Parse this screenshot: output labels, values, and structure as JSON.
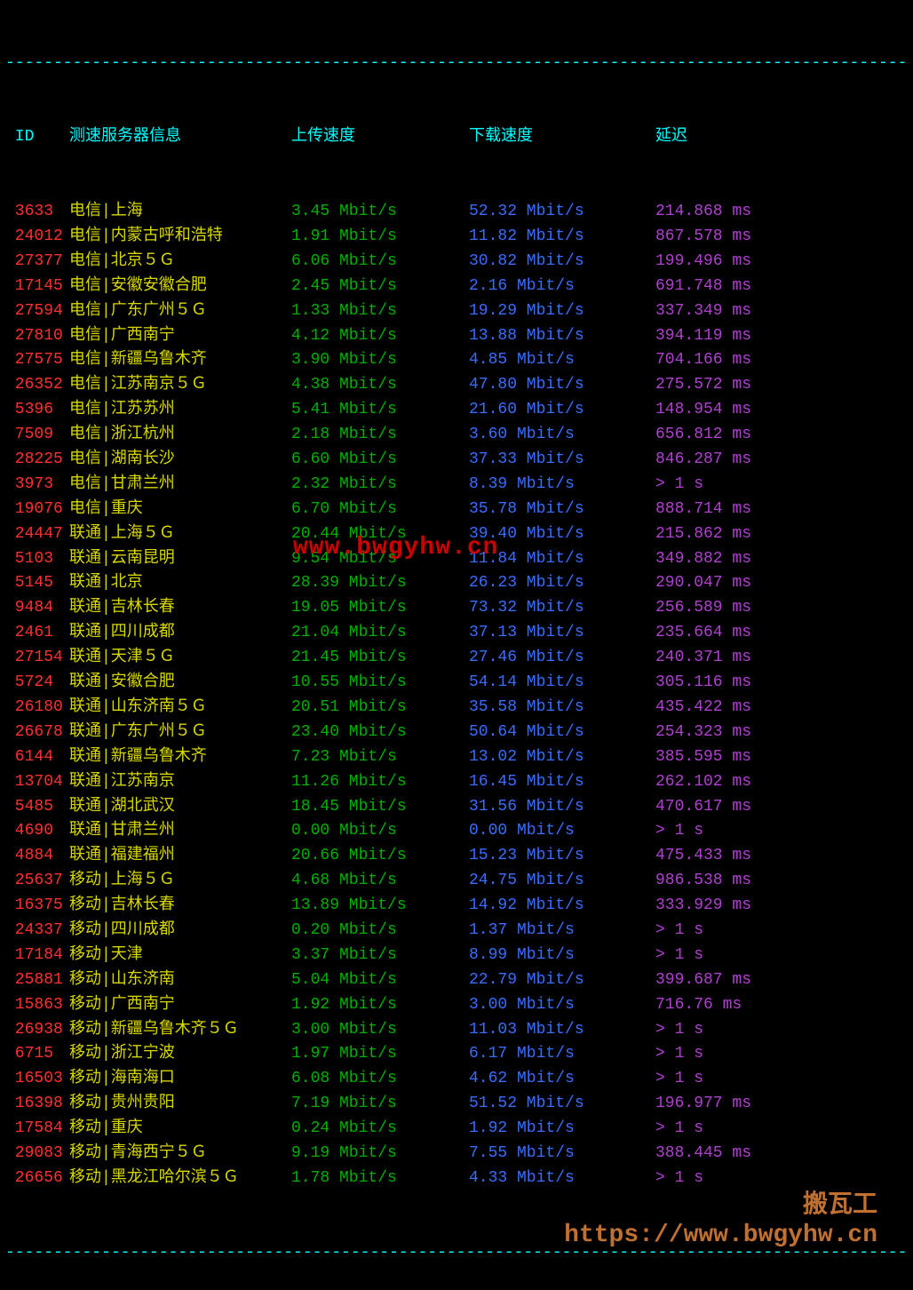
{
  "divider": "----------------------------------------------------------------------------------------------------",
  "headers": {
    "id": " ID",
    "server": "测速服务器信息",
    "upload": "上传速度",
    "download": "下载速度",
    "latency": "延迟"
  },
  "colors": {
    "background": "#000000",
    "divider": "#00ffff",
    "header": "#00ffff",
    "id": "#ff3030",
    "server": "#d8d800",
    "upload": "#00b000",
    "download": "#3a6cff",
    "latency": "#b040d0",
    "watermark1": "#cc0000",
    "watermark2": "#c07030"
  },
  "watermark1": "www.bwgyhw.cn",
  "watermark2_line1": "搬瓦工",
  "watermark2_line2": "https://www.bwgyhw.cn",
  "rows": [
    {
      "id": " 3633",
      "server": "电信|上海",
      "up": "3.45 Mbit/s",
      "down": "52.32 Mbit/s",
      "lat": "214.868 ms"
    },
    {
      "id": " 24012",
      "server": "电信|内蒙古呼和浩特",
      "up": "1.91 Mbit/s",
      "down": "11.82 Mbit/s",
      "lat": "867.578 ms"
    },
    {
      "id": " 27377",
      "server": "电信|北京５Ｇ",
      "up": "6.06 Mbit/s",
      "down": "30.82 Mbit/s",
      "lat": "199.496 ms"
    },
    {
      "id": " 17145",
      "server": "电信|安徽安徽合肥",
      "up": "2.45 Mbit/s",
      "down": "2.16 Mbit/s",
      "lat": "691.748 ms"
    },
    {
      "id": " 27594",
      "server": "电信|广东广州５Ｇ",
      "up": "1.33 Mbit/s",
      "down": "19.29 Mbit/s",
      "lat": "337.349 ms"
    },
    {
      "id": " 27810",
      "server": "电信|广西南宁",
      "up": "4.12 Mbit/s",
      "down": "13.88 Mbit/s",
      "lat": "394.119 ms"
    },
    {
      "id": " 27575",
      "server": "电信|新疆乌鲁木齐",
      "up": "3.90 Mbit/s",
      "down": "4.85 Mbit/s",
      "lat": "704.166 ms"
    },
    {
      "id": " 26352",
      "server": "电信|江苏南京５Ｇ",
      "up": "4.38 Mbit/s",
      "down": "47.80 Mbit/s",
      "lat": "275.572 ms"
    },
    {
      "id": " 5396",
      "server": "电信|江苏苏州",
      "up": "5.41 Mbit/s",
      "down": "21.60 Mbit/s",
      "lat": "148.954 ms"
    },
    {
      "id": " 7509",
      "server": "电信|浙江杭州",
      "up": "2.18 Mbit/s",
      "down": "3.60 Mbit/s",
      "lat": "656.812 ms"
    },
    {
      "id": " 28225",
      "server": "电信|湖南长沙",
      "up": "6.60 Mbit/s",
      "down": "37.33 Mbit/s",
      "lat": "846.287 ms"
    },
    {
      "id": " 3973",
      "server": "电信|甘肃兰州",
      "up": "2.32 Mbit/s",
      "down": "8.39 Mbit/s",
      "lat": "> 1 s"
    },
    {
      "id": " 19076",
      "server": "电信|重庆",
      "up": "6.70 Mbit/s",
      "down": "35.78 Mbit/s",
      "lat": "888.714 ms"
    },
    {
      "id": " 24447",
      "server": "联通|上海５Ｇ",
      "up": "20.44 Mbit/s",
      "down": "39.40 Mbit/s",
      "lat": "215.862 ms"
    },
    {
      "id": " 5103",
      "server": "联通|云南昆明",
      "up": "9.54 Mbit/s",
      "down": "11.84 Mbit/s",
      "lat": "349.882 ms"
    },
    {
      "id": " 5145",
      "server": "联通|北京",
      "up": "28.39 Mbit/s",
      "down": "26.23 Mbit/s",
      "lat": "290.047 ms"
    },
    {
      "id": " 9484",
      "server": "联通|吉林长春",
      "up": "19.05 Mbit/s",
      "down": "73.32 Mbit/s",
      "lat": "256.589 ms"
    },
    {
      "id": " 2461",
      "server": "联通|四川成都",
      "up": "21.04 Mbit/s",
      "down": "37.13 Mbit/s",
      "lat": "235.664 ms"
    },
    {
      "id": " 27154",
      "server": "联通|天津５Ｇ",
      "up": "21.45 Mbit/s",
      "down": "27.46 Mbit/s",
      "lat": "240.371 ms"
    },
    {
      "id": " 5724",
      "server": "联通|安徽合肥",
      "up": "10.55 Mbit/s",
      "down": "54.14 Mbit/s",
      "lat": "305.116 ms"
    },
    {
      "id": " 26180",
      "server": "联通|山东济南５Ｇ",
      "up": "20.51 Mbit/s",
      "down": "35.58 Mbit/s",
      "lat": "435.422 ms"
    },
    {
      "id": " 26678",
      "server": "联通|广东广州５Ｇ",
      "up": "23.40 Mbit/s",
      "down": "50.64 Mbit/s",
      "lat": "254.323 ms"
    },
    {
      "id": " 6144",
      "server": "联通|新疆乌鲁木齐",
      "up": "7.23 Mbit/s",
      "down": "13.02 Mbit/s",
      "lat": "385.595 ms"
    },
    {
      "id": " 13704",
      "server": "联通|江苏南京",
      "up": "11.26 Mbit/s",
      "down": "16.45 Mbit/s",
      "lat": "262.102 ms"
    },
    {
      "id": " 5485",
      "server": "联通|湖北武汉",
      "up": "18.45 Mbit/s",
      "down": "31.56 Mbit/s",
      "lat": "470.617 ms"
    },
    {
      "id": " 4690",
      "server": "联通|甘肃兰州",
      "up": "0.00 Mbit/s",
      "down": "0.00 Mbit/s",
      "lat": "> 1 s"
    },
    {
      "id": " 4884",
      "server": "联通|福建福州",
      "up": "20.66 Mbit/s",
      "down": "15.23 Mbit/s",
      "lat": "475.433 ms"
    },
    {
      "id": " 25637",
      "server": "移动|上海５Ｇ",
      "up": "4.68 Mbit/s",
      "down": "24.75 Mbit/s",
      "lat": "986.538 ms"
    },
    {
      "id": " 16375",
      "server": "移动|吉林长春",
      "up": "13.89 Mbit/s",
      "down": "14.92 Mbit/s",
      "lat": "333.929 ms"
    },
    {
      "id": " 24337",
      "server": "移动|四川成都",
      "up": "0.20 Mbit/s",
      "down": "1.37 Mbit/s",
      "lat": "> 1 s"
    },
    {
      "id": " 17184",
      "server": "移动|天津",
      "up": "3.37 Mbit/s",
      "down": "8.99 Mbit/s",
      "lat": "> 1 s"
    },
    {
      "id": " 25881",
      "server": "移动|山东济南",
      "up": "5.04 Mbit/s",
      "down": "22.79 Mbit/s",
      "lat": "399.687 ms"
    },
    {
      "id": " 15863",
      "server": "移动|广西南宁",
      "up": "1.92 Mbit/s",
      "down": "3.00 Mbit/s",
      "lat": "716.76 ms"
    },
    {
      "id": " 26938",
      "server": "移动|新疆乌鲁木齐５Ｇ",
      "up": "3.00 Mbit/s",
      "down": "11.03 Mbit/s",
      "lat": "> 1 s"
    },
    {
      "id": " 6715",
      "server": "移动|浙江宁波",
      "up": "1.97 Mbit/s",
      "down": "6.17 Mbit/s",
      "lat": "> 1 s"
    },
    {
      "id": " 16503",
      "server": "移动|海南海口",
      "up": "6.08 Mbit/s",
      "down": "4.62 Mbit/s",
      "lat": "> 1 s"
    },
    {
      "id": " 16398",
      "server": "移动|贵州贵阳",
      "up": "7.19 Mbit/s",
      "down": "51.52 Mbit/s",
      "lat": "196.977 ms"
    },
    {
      "id": " 17584",
      "server": "移动|重庆",
      "up": "0.24 Mbit/s",
      "down": "1.92 Mbit/s",
      "lat": "> 1 s"
    },
    {
      "id": " 29083",
      "server": "移动|青海西宁５Ｇ",
      "up": "9.19 Mbit/s",
      "down": "7.55 Mbit/s",
      "lat": "388.445 ms"
    },
    {
      "id": " 26656",
      "server": "移动|黑龙江哈尔滨５Ｇ",
      "up": "1.78 Mbit/s",
      "down": "4.33 Mbit/s",
      "lat": "> 1 s"
    }
  ]
}
